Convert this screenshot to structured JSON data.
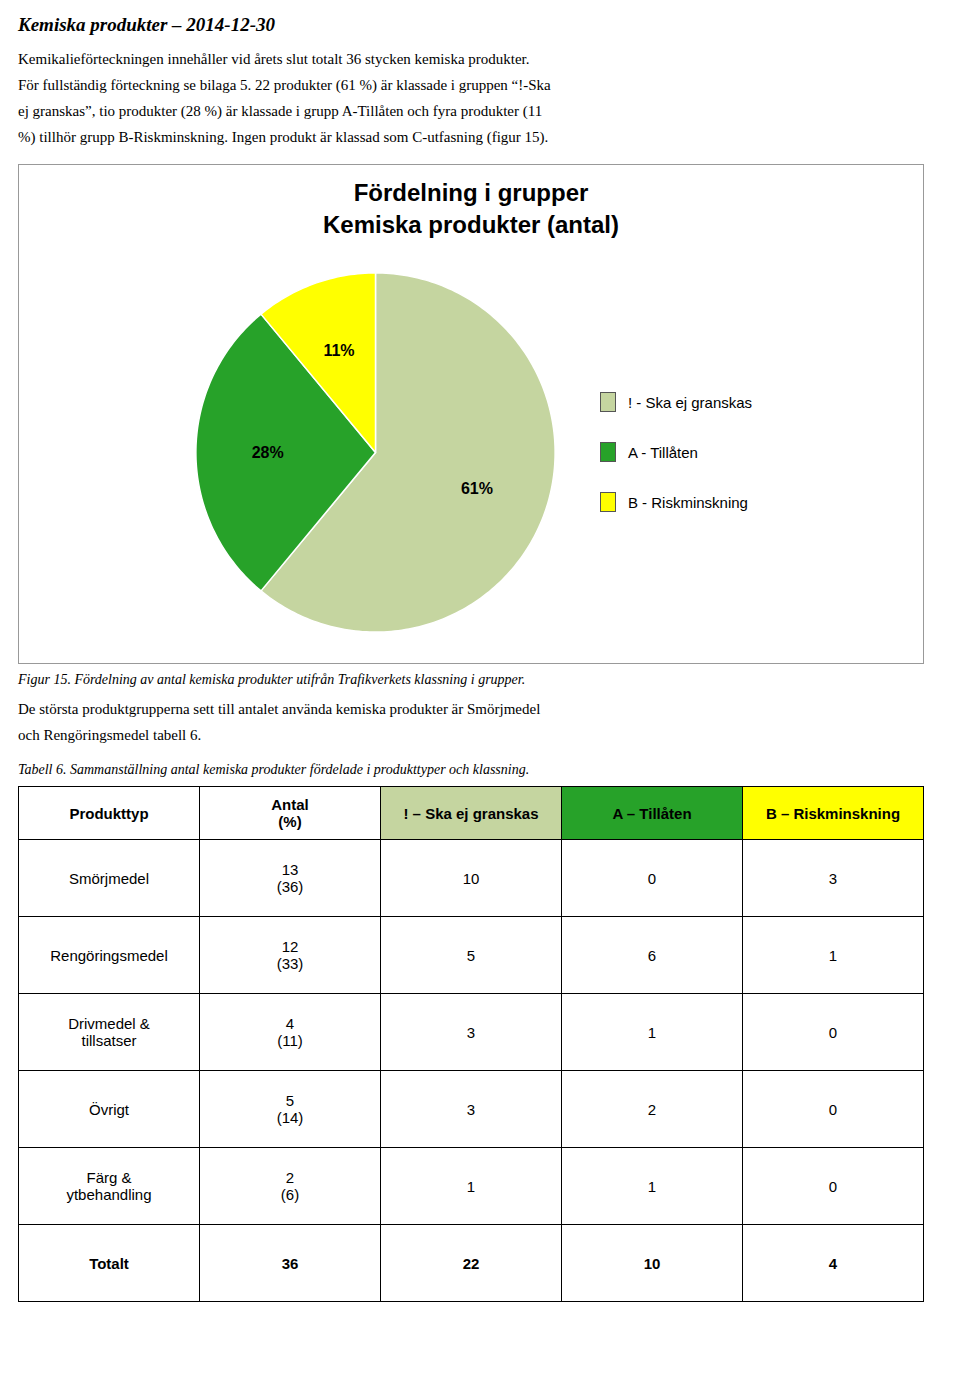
{
  "page_title": "Kemiska produkter – 2014-12-30",
  "paragraph1": [
    "Kemikalieförteckningen innehåller vid årets slut totalt 36 stycken kemiska produkter.",
    "För fullständig förteckning se bilaga 5. 22 produkter (61 %) är klassade i gruppen “!-Ska",
    "ej granskas”, tio produkter (28 %) är klassade i grupp A-Tillåten och fyra produkter (11",
    "%) tillhör grupp B-Riskminskning. Ingen produkt är klassad som C-utfasning (figur 15)."
  ],
  "chart_data": {
    "type": "pie",
    "title": "Fördelning i grupper",
    "subtitle": "Kemiska produkter (antal)",
    "categories": [
      "! - Ska ej granskas",
      "A - Tillåten",
      "B - Riskminskning"
    ],
    "values": [
      61,
      28,
      11
    ],
    "value_labels": [
      "61%",
      "28%",
      "11%"
    ],
    "data_labels": true,
    "colors": [
      "#c5d5a0",
      "#27a229",
      "#ffff00"
    ],
    "legend": "right",
    "caption": "Figur 15.   Fördelning av antal kemiska produkter utifrån Trafikverkets klassning i grupper."
  },
  "paragraph2": [
    "De största produktgrupperna sett till antalet använda kemiska produkter är Smörjmedel",
    "och Rengöringsmedel tabell 6."
  ],
  "table": {
    "caption": "Tabell 6.  Sammanställning antal kemiska produkter fördelade i produkttyper och klassning.",
    "headers": [
      "Produkttyp",
      "Antal\n(%)",
      "! – Ska ej granskas",
      "A – Tillåten",
      "B – Riskminskning"
    ],
    "header_colors": [
      "#ffffff",
      "#ffffff",
      "#c5d5a0",
      "#27a229",
      "#ffff00"
    ],
    "rows": [
      [
        "Smörjmedel",
        "13\n(36)",
        "10",
        "0",
        "3"
      ],
      [
        "Rengöringsmedel",
        "12\n(33)",
        "5",
        "6",
        "1"
      ],
      [
        "Drivmedel &\ntillsatser",
        "4\n(11)",
        "3",
        "1",
        "0"
      ],
      [
        "Övrigt",
        "5\n(14)",
        "3",
        "2",
        "0"
      ],
      [
        "Färg &\nytbehandling",
        "2\n(6)",
        "1",
        "1",
        "0"
      ],
      [
        "Totalt",
        "36",
        "22",
        "10",
        "4"
      ]
    ]
  }
}
